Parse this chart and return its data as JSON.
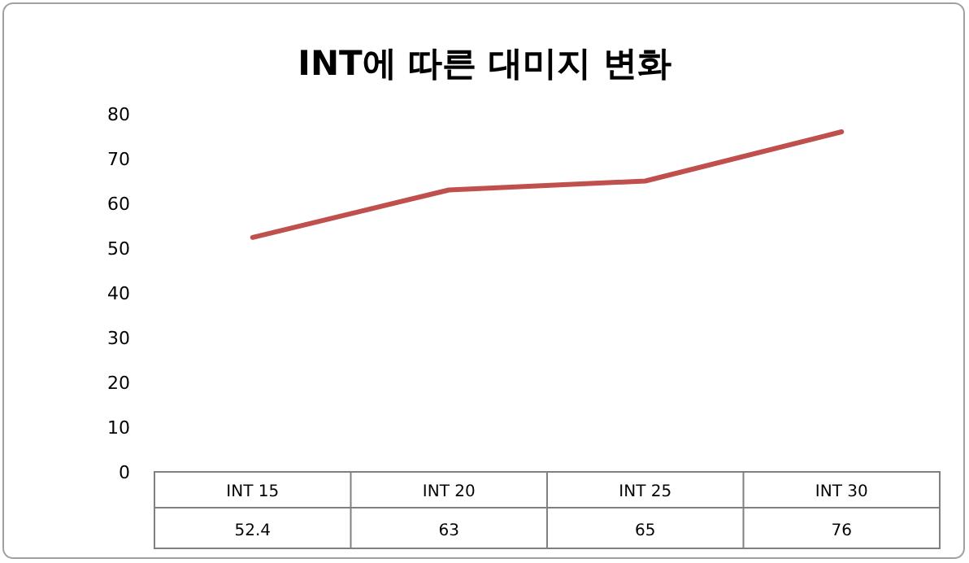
{
  "chart_data": {
    "type": "line",
    "title": "INT에 따른 대미지 변화",
    "categories": [
      "INT 15",
      "INT 20",
      "INT 25",
      "INT 30"
    ],
    "values": [
      52.4,
      63,
      65,
      76
    ],
    "color": "#c0504d",
    "ylim": [
      0,
      80
    ],
    "yticks": [
      0,
      10,
      20,
      30,
      40,
      50,
      60,
      70,
      80
    ],
    "data_labels": true
  }
}
